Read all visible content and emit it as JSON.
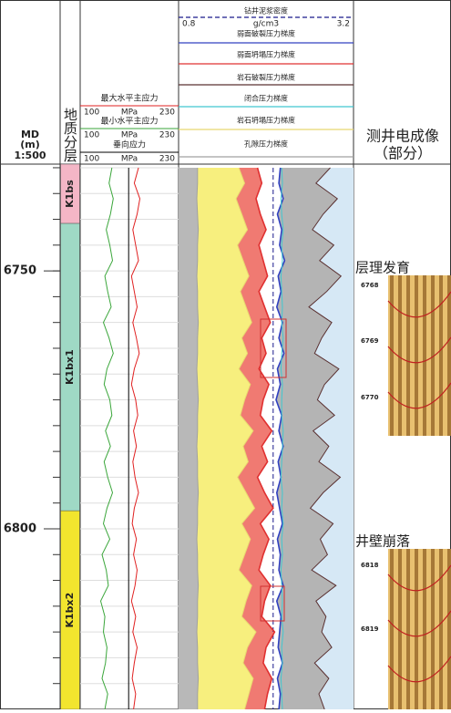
{
  "chart_data": {
    "type": "well-log",
    "md_label": "MD",
    "md_unit": "(m)",
    "md_scale": "1:500",
    "strata_title": "地质分层",
    "image_title": "测井电成像",
    "image_subtitle": "（部分）",
    "ylim": [
      6729.3,
      6835
    ],
    "yticks": [
      6750,
      6800
    ],
    "yticks_minor": [
      6730,
      6735,
      6740,
      6745,
      6750,
      6755,
      6760,
      6765,
      6770,
      6775,
      6780,
      6785,
      6790,
      6795,
      6800,
      6805,
      6810,
      6815,
      6820,
      6825,
      6830,
      6835
    ],
    "depths": [
      6730,
      6733,
      6736,
      6739,
      6742,
      6745,
      6748,
      6751,
      6754,
      6757,
      6760,
      6763,
      6766,
      6769,
      6772,
      6775,
      6778,
      6781,
      6784,
      6787,
      6790,
      6793,
      6796,
      6799,
      6802,
      6805,
      6808,
      6811,
      6814,
      6817,
      6820,
      6823,
      6826,
      6829,
      6832,
      6835
    ],
    "formations": [
      {
        "name": "K1bs",
        "top": 6729.3,
        "base": 6740.8,
        "color": "#f4b6c6"
      },
      {
        "name": "K1bx1",
        "top": 6740.8,
        "base": 6796.5,
        "color": "#9fd9c5"
      },
      {
        "name": "K1bx2",
        "top": 6796.5,
        "base": 6835,
        "color": "#f2e52e"
      }
    ],
    "stress_track": {
      "xlim": [
        100,
        230
      ],
      "unit": "MPa",
      "series": [
        {
          "name": "最大水平主应力",
          "color": "#e02020",
          "values": [
            178,
            172,
            180,
            176,
            170,
            174,
            178,
            168,
            172,
            176,
            170,
            175,
            179,
            172,
            168,
            174,
            177,
            171,
            175,
            170,
            173,
            178,
            172,
            169,
            175,
            171,
            176,
            173,
            168,
            174,
            170,
            176,
            172,
            169,
            174,
            171
          ]
        },
        {
          "name": "最小水平主应力",
          "color": "#3aa63a",
          "values": [
            140,
            136,
            142,
            138,
            132,
            137,
            141,
            130,
            134,
            139,
            128,
            136,
            142,
            133,
            129,
            137,
            140,
            131,
            138,
            129,
            134,
            141,
            133,
            128,
            137,
            126,
            132,
            135,
            124,
            130,
            128,
            133,
            131,
            126,
            134,
            130
          ]
        },
        {
          "name": "垂向应力",
          "color": "#000000",
          "values": [
            164,
            164,
            164,
            164,
            164,
            164,
            164,
            164,
            164,
            164,
            164,
            164,
            164,
            164,
            164,
            164,
            164,
            164,
            164,
            164,
            164,
            164,
            164,
            164,
            164,
            164,
            164,
            164,
            164,
            164,
            164,
            164,
            164,
            164,
            164,
            164
          ]
        }
      ]
    },
    "pressure_track": {
      "xlim": [
        0.8,
        3.2
      ],
      "unit": "g/cm3",
      "series": [
        {
          "name": "钻井泥浆密度",
          "color": "#1a1a8c",
          "dashed": true,
          "values": [
            2.1,
            2.1,
            2.1,
            2.1,
            2.1,
            2.1,
            2.1,
            2.1,
            2.1,
            2.1,
            2.1,
            2.1,
            2.1,
            2.1,
            2.1,
            2.1,
            2.1,
            2.1,
            2.1,
            2.1,
            2.1,
            2.1,
            2.1,
            2.1,
            2.1,
            2.1,
            2.1,
            2.1,
            2.1,
            2.1,
            2.1,
            2.1,
            2.1,
            2.1,
            2.1,
            2.1
          ]
        },
        {
          "name": "弱面破裂压力梯度",
          "color": "#3040c0",
          "values": [
            2.2,
            2.18,
            2.24,
            2.16,
            2.22,
            2.19,
            2.26,
            2.17,
            2.21,
            2.15,
            2.23,
            2.18,
            2.25,
            2.16,
            2.2,
            2.14,
            2.22,
            2.18,
            2.24,
            2.17,
            2.21,
            2.15,
            2.19,
            2.23,
            2.16,
            2.2,
            2.18,
            2.24,
            2.15,
            2.21,
            2.19,
            2.17,
            2.23,
            2.16,
            2.2,
            2.18
          ]
        },
        {
          "name": "弱面坍塌压力梯度",
          "color": "#e03030",
          "values": [
            1.88,
            1.94,
            1.86,
            1.92,
            2.0,
            1.9,
            1.96,
            2.02,
            1.9,
            1.98,
            2.06,
            1.94,
            2.0,
            1.9,
            2.04,
            1.96,
            1.92,
            2.08,
            1.94,
            2.02,
            1.88,
            1.98,
            2.1,
            1.92,
            2.04,
            1.96,
            1.9,
            2.06,
            1.98,
            1.94,
            2.12,
            2.0,
            1.96,
            2.08,
            2.02,
            1.98
          ]
        },
        {
          "name": "岩石破裂压力梯度",
          "color": "#5a3030",
          "values": [
            2.9,
            2.7,
            3.0,
            2.8,
            2.65,
            2.95,
            2.75,
            3.05,
            2.85,
            2.6,
            2.92,
            2.78,
            2.68,
            3.02,
            2.82,
            2.72,
            2.96,
            2.66,
            2.88,
            2.74,
            3.04,
            2.8,
            2.62,
            2.94,
            2.76,
            2.86,
            2.64,
            2.98,
            2.7,
            2.84,
            2.78,
            2.92,
            2.68,
            2.88,
            2.74,
            2.82
          ]
        },
        {
          "name": "闭合压力梯度",
          "color": "#40c8d0",
          "values": [
            2.22,
            2.23,
            2.21,
            2.22,
            2.24,
            2.22,
            2.23,
            2.21,
            2.22,
            2.23,
            2.22,
            2.24,
            2.22,
            2.21,
            2.23,
            2.22,
            2.22,
            2.24,
            2.23,
            2.22,
            2.21,
            2.23,
            2.22,
            2.24,
            2.22,
            2.23,
            2.21,
            2.22,
            2.23,
            2.22,
            2.24,
            2.22,
            2.23,
            2.21,
            2.22,
            2.23
          ]
        },
        {
          "name": "岩石坍塌压力梯度",
          "color": "#e8d870",
          "values": [
            1.62,
            1.7,
            1.58,
            1.66,
            1.74,
            1.6,
            1.68,
            1.76,
            1.64,
            1.72,
            1.8,
            1.66,
            1.74,
            1.62,
            1.78,
            1.7,
            1.64,
            1.82,
            1.68,
            1.75,
            1.6,
            1.72,
            1.84,
            1.66,
            1.78,
            1.7,
            1.62,
            1.8,
            1.72,
            1.66,
            1.86,
            1.74,
            1.68,
            1.82,
            1.76,
            1.7
          ]
        },
        {
          "name": "孔隙压力梯度",
          "color": "#a0a0a0",
          "values": [
            1.04,
            1.04,
            1.03,
            1.04,
            1.05,
            1.04,
            1.04,
            1.03,
            1.04,
            1.04,
            1.05,
            1.04,
            1.04,
            1.03,
            1.04,
            1.05,
            1.04,
            1.04,
            1.03,
            1.04,
            1.04,
            1.05,
            1.04,
            1.04,
            1.03,
            1.04,
            1.04,
            1.05,
            1.04,
            1.04,
            1.03,
            1.04,
            1.04,
            1.05,
            1.04,
            1.04
          ]
        }
      ]
    },
    "images": [
      {
        "label": "层理发育",
        "depths": [
          "6768",
          "6769",
          "6770"
        ]
      },
      {
        "label": "井壁崩落",
        "depths": [
          "6818",
          "6819"
        ]
      }
    ]
  }
}
